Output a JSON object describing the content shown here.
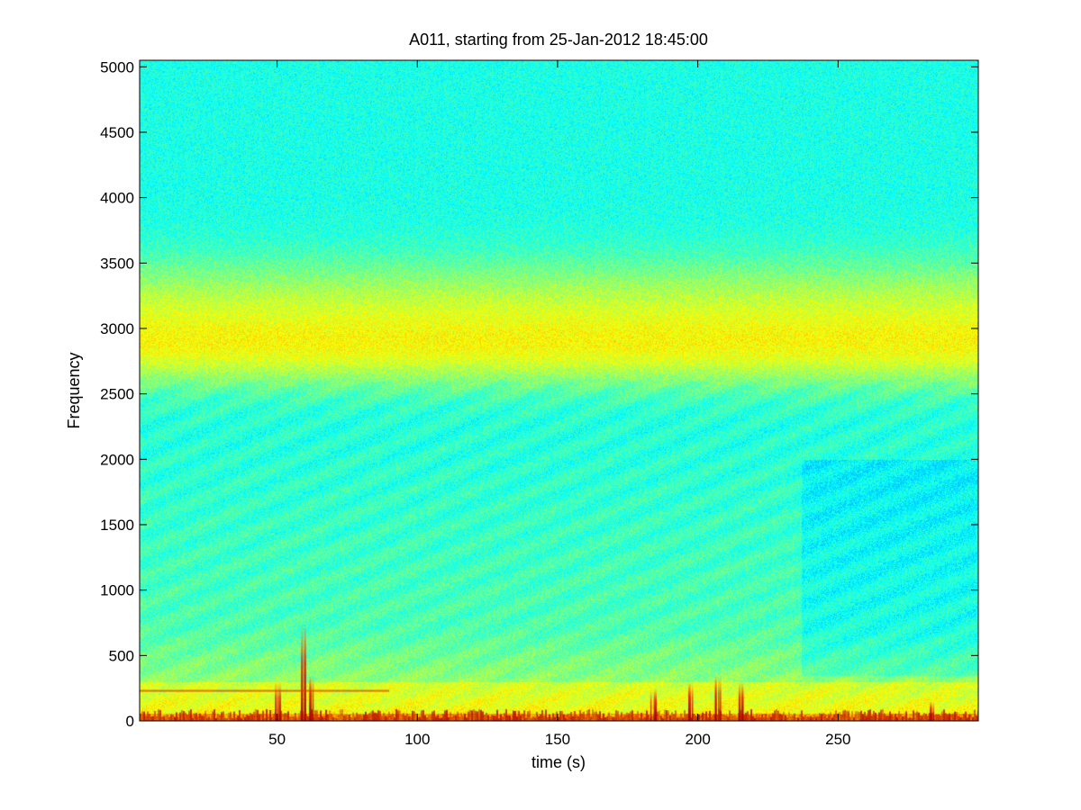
{
  "chart_data": {
    "type": "heatmap",
    "title": "A011, starting from 25-Jan-2012 18:45:00",
    "xlabel": "time (s)",
    "ylabel": "Frequency",
    "xlim": [
      1,
      300
    ],
    "ylim": [
      0,
      5050
    ],
    "xticks": [
      50,
      100,
      150,
      200,
      250
    ],
    "yticks": [
      0,
      500,
      1000,
      1500,
      2000,
      2500,
      3000,
      3500,
      4000,
      4500,
      5000
    ],
    "colormap": "jet",
    "grid": false,
    "bands": [
      {
        "f_low": 2600,
        "f_high": 3050,
        "intensity": "high",
        "color": "yellow"
      },
      {
        "f_low": 0,
        "f_high": 700,
        "intensity": "high",
        "color": "yellow"
      },
      {
        "f_low": 0,
        "f_high": 60,
        "intensity": "very high",
        "color": "red"
      }
    ],
    "events": [
      {
        "t": 50,
        "f_max": 300
      },
      {
        "t": 59,
        "f_max": 750
      },
      {
        "t": 62,
        "f_max": 350
      },
      {
        "t": 184,
        "f_max": 250
      },
      {
        "t": 197,
        "f_max": 300
      },
      {
        "t": 207,
        "f_max": 350
      },
      {
        "t": 215,
        "f_max": 300
      },
      {
        "t": 283,
        "f_max": 150
      }
    ],
    "horizontal_lines": [
      {
        "t_start": 1,
        "t_end": 90,
        "f": 230
      }
    ]
  }
}
